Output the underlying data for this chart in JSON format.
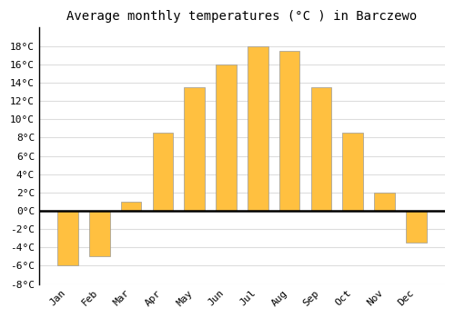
{
  "title": "Average monthly temperatures (°C ) in Barczewo",
  "months": [
    "Jan",
    "Feb",
    "Mar",
    "Apr",
    "May",
    "Jun",
    "Jul",
    "Aug",
    "Sep",
    "Oct",
    "Nov",
    "Dec"
  ],
  "values": [
    -6.0,
    -5.0,
    1.0,
    8.5,
    13.5,
    16.0,
    18.0,
    17.5,
    13.5,
    8.5,
    2.0,
    -3.5
  ],
  "bar_color_top": "#FFC040",
  "bar_color_bottom": "#FFA020",
  "bar_edge_color": "#999999",
  "ylim": [
    -8,
    20
  ],
  "yticks": [
    -8,
    -6,
    -4,
    -2,
    0,
    2,
    4,
    6,
    8,
    10,
    12,
    14,
    16,
    18
  ],
  "grid_color": "#dddddd",
  "plot_bg_color": "#ffffff",
  "fig_bg_color": "#ffffff",
  "title_fontsize": 10,
  "axis_fontsize": 8,
  "zero_line_color": "#000000",
  "spine_color": "#000000"
}
